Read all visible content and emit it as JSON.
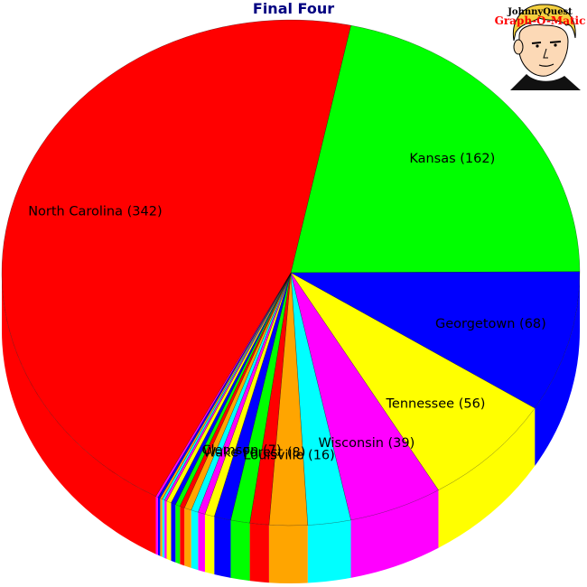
{
  "chart_data": {
    "type": "pie",
    "title": "Final Four",
    "slices": [
      {
        "label": "Kansas (162)",
        "name": "Kansas",
        "value": 162,
        "color": "#00ff00"
      },
      {
        "label": "Georgetown (68)",
        "name": "Georgetown",
        "value": 68,
        "color": "#0000ff"
      },
      {
        "label": "Tennessee (56)",
        "name": "Tennessee",
        "value": 56,
        "color": "#ffff00"
      },
      {
        "label": "Wisconsin (39)",
        "name": "Wisconsin",
        "value": 39,
        "color": "#ff00ff"
      },
      {
        "label": "",
        "name": "",
        "value": 18,
        "color": "#00ffff"
      },
      {
        "label": "Louisville (16)",
        "name": "Louisville",
        "value": 16,
        "color": "#ffa500"
      },
      {
        "label": "",
        "name": "",
        "value": 8,
        "color": "#ff0000"
      },
      {
        "label": "Wake Forest (8)",
        "name": "Wake Forest",
        "value": 8,
        "color": "#00ff00"
      },
      {
        "label": "Clemson (7)",
        "name": "Clemson",
        "value": 7,
        "color": "#0000ff"
      },
      {
        "label": "",
        "name": "",
        "value": 4,
        "color": "#ffff00"
      },
      {
        "label": "",
        "name": "",
        "value": 3,
        "color": "#ff00ff"
      },
      {
        "label": "",
        "name": "",
        "value": 3,
        "color": "#00ffff"
      },
      {
        "label": "",
        "name": "",
        "value": 3,
        "color": "#ffa500"
      },
      {
        "label": "",
        "name": "",
        "value": 2,
        "color": "#ff0000"
      },
      {
        "label": "",
        "name": "",
        "value": 2,
        "color": "#00ff00"
      },
      {
        "label": "",
        "name": "",
        "value": 2,
        "color": "#0000ff"
      },
      {
        "label": "",
        "name": "",
        "value": 2,
        "color": "#ffff00"
      },
      {
        "label": "",
        "name": "",
        "value": 1,
        "color": "#ff00ff"
      },
      {
        "label": "",
        "name": "",
        "value": 1,
        "color": "#00ffff"
      },
      {
        "label": "",
        "name": "",
        "value": 1,
        "color": "#ffa500"
      },
      {
        "label": "",
        "name": "",
        "value": 1,
        "color": "#0000ff"
      },
      {
        "label": "",
        "name": "",
        "value": 1,
        "color": "#ff00ff"
      },
      {
        "label": "North Carolina (342)",
        "name": "North Carolina",
        "value": 342,
        "color": "#ff0000"
      }
    ],
    "style": "3d-tilted"
  },
  "logo": {
    "line1": "JohnnyQuest",
    "line2": "Graph-O-Matic"
  }
}
